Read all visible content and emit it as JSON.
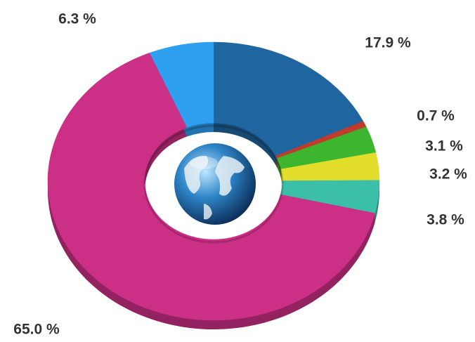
{
  "chart_data": {
    "type": "donut",
    "values": [
      17.9,
      0.7,
      3.1,
      3.2,
      3.8,
      65.0,
      6.3
    ],
    "value_labels": [
      "17.9 %",
      "0.7 %",
      "3.1 %",
      "3.2 %",
      "3.8 %",
      "65.0 %",
      "6.3 %"
    ],
    "colors": [
      "#1f66a0",
      "#c23b2a",
      "#3db52f",
      "#e2de2b",
      "#3bbfa9",
      "#cc2f86",
      "#2f9ff0"
    ]
  }
}
